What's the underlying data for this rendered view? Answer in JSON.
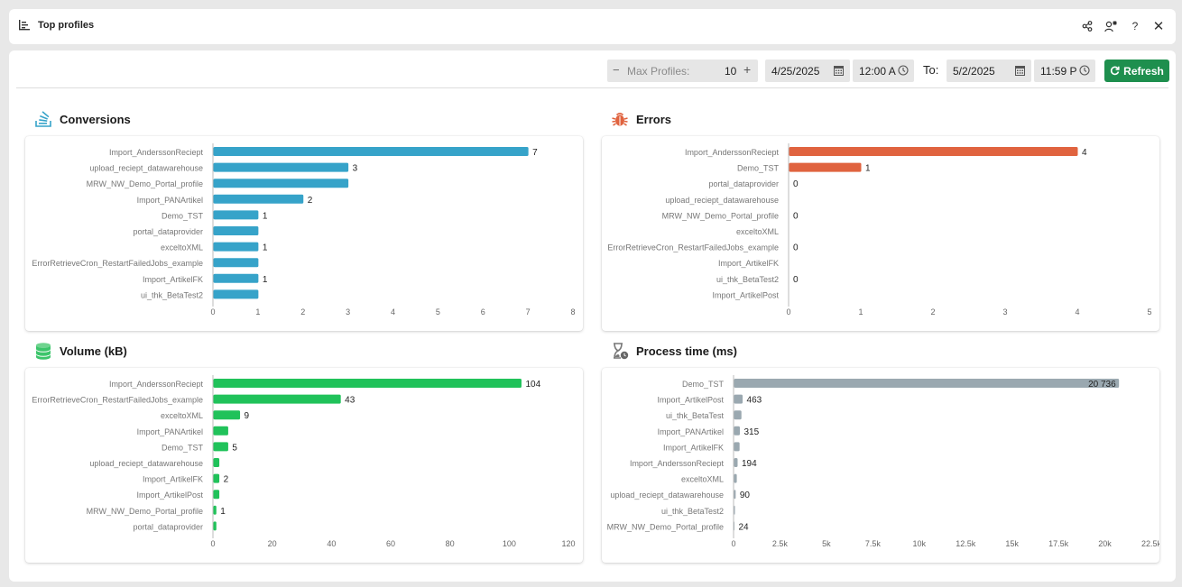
{
  "window": {
    "title": "Top profiles",
    "icons": [
      "chart-list-icon",
      "share-icon",
      "user-settings-icon",
      "help-icon",
      "close-icon"
    ]
  },
  "toolbar": {
    "max_profiles_label": "Max Profiles:",
    "max_profiles_value": "10",
    "from_date": "4/25/2025",
    "from_time": "12:00 A",
    "to_label": "To:",
    "to_date": "5/2/2025",
    "to_time": "11:59 P",
    "refresh_label": "Refresh"
  },
  "colors": {
    "conversions": "#36a3c9",
    "errors": "#e0633f",
    "volume": "#20c25a",
    "process": "#9aa8b0",
    "refresh": "#1e8f4e"
  },
  "sections": {
    "conversions": "Conversions",
    "errors": "Errors",
    "volume": "Volume (kB)",
    "process": "Process time (ms)"
  },
  "chart_data": [
    {
      "id": "conversions",
      "type": "bar",
      "orientation": "horizontal",
      "title": "Conversions",
      "categories": [
        "Import_AnderssonReciept",
        "upload_reciept_datawarehouse",
        "MRW_NW_Demo_Portal_profile",
        "Import_PANArtikel",
        "Demo_TST",
        "portal_dataprovider",
        "exceltoXML",
        "ErrorRetrieveCron_RestartFailedJobs_example",
        "Import_ArtikelFK",
        "ui_thk_BetaTest2"
      ],
      "values": [
        7,
        3,
        3,
        2,
        1,
        1,
        1,
        1,
        1,
        1
      ],
      "data_labels": [
        "7",
        "3",
        "",
        "2",
        "1",
        "",
        "1",
        "",
        "1",
        ""
      ],
      "xlim": [
        0,
        8
      ],
      "ticks": [
        "0",
        "1",
        "2",
        "3",
        "4",
        "5",
        "6",
        "7",
        "8"
      ]
    },
    {
      "id": "errors",
      "type": "bar",
      "orientation": "horizontal",
      "title": "Errors",
      "categories": [
        "Import_AnderssonReciept",
        "Demo_TST",
        "portal_dataprovider",
        "upload_reciept_datawarehouse",
        "MRW_NW_Demo_Portal_profile",
        "exceltoXML",
        "ErrorRetrieveCron_RestartFailedJobs_example",
        "Import_ArtikelFK",
        "ui_thk_BetaTest2",
        "Import_ArtikelPost"
      ],
      "values": [
        4,
        1,
        0,
        0,
        0,
        0,
        0,
        0,
        0,
        0
      ],
      "data_labels": [
        "4",
        "1",
        "0",
        "",
        "0",
        "",
        "0",
        "",
        "0",
        ""
      ],
      "xlim": [
        0,
        5
      ],
      "ticks": [
        "0",
        "1",
        "2",
        "3",
        "4",
        "5"
      ]
    },
    {
      "id": "volume",
      "type": "bar",
      "orientation": "horizontal",
      "title": "Volume (kB)",
      "categories": [
        "Import_AnderssonReciept",
        "ErrorRetrieveCron_RestartFailedJobs_example",
        "exceltoXML",
        "Import_PANArtikel",
        "Demo_TST",
        "upload_reciept_datawarehouse",
        "Import_ArtikelFK",
        "Import_ArtikelPost",
        "MRW_NW_Demo_Portal_profile",
        "portal_dataprovider"
      ],
      "values": [
        104,
        43,
        9,
        5,
        5,
        2,
        2,
        2,
        1,
        1
      ],
      "data_labels": [
        "104",
        "43",
        "9",
        "",
        "5",
        "",
        "2",
        "",
        "1",
        ""
      ],
      "xlim": [
        0,
        120
      ],
      "ticks": [
        "0",
        "20",
        "40",
        "60",
        "80",
        "100",
        "120"
      ]
    },
    {
      "id": "process",
      "type": "bar",
      "orientation": "horizontal",
      "title": "Process time (ms)",
      "categories": [
        "Demo_TST",
        "Import_ArtikelPost",
        "ui_thk_BetaTest",
        "Import_PANArtikel",
        "Import_ArtikelFK",
        "Import_AnderssonReciept",
        "exceltoXML",
        "upload_reciept_datawarehouse",
        "ui_thk_BetaTest2",
        "MRW_NW_Demo_Portal_profile"
      ],
      "values": [
        20736,
        463,
        400,
        315,
        300,
        194,
        150,
        90,
        50,
        24
      ],
      "data_labels": [
        "20 736",
        "463",
        "",
        "315",
        "",
        "194",
        "",
        "90",
        "",
        "24"
      ],
      "xlim": [
        0,
        22500
      ],
      "ticks": [
        "0",
        "2.5k",
        "5k",
        "7.5k",
        "10k",
        "12.5k",
        "15k",
        "17.5k",
        "20k",
        "22.5k"
      ]
    }
  ]
}
